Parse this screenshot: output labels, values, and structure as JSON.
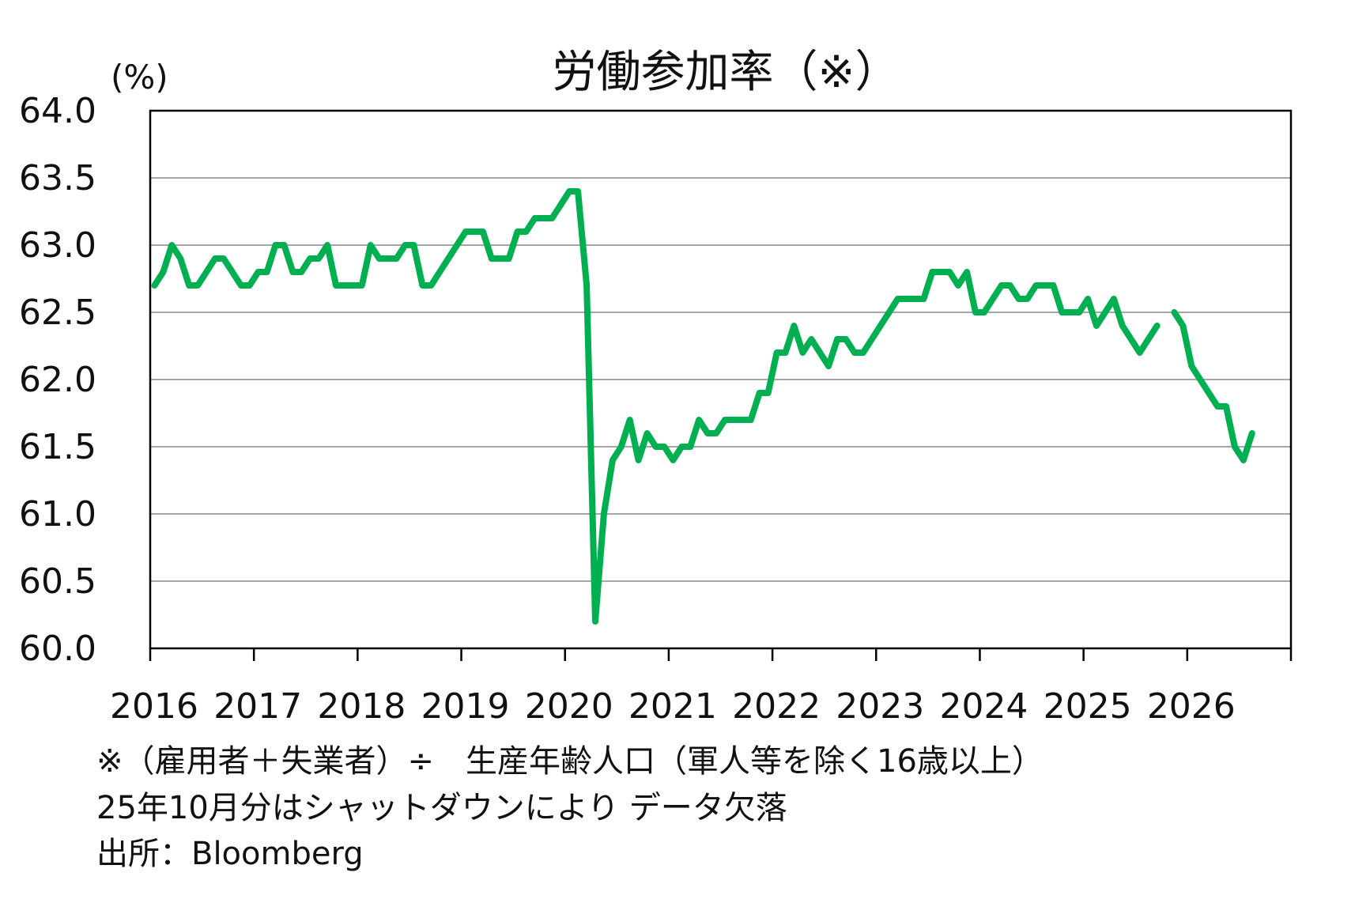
{
  "chart_data": {
    "type": "line",
    "title": "労働参加率（※）",
    "ylabel": "(%)",
    "xlabel": "",
    "ylim": [
      60.0,
      64.0
    ],
    "yticks": [
      "64.0",
      "63.5",
      "63.0",
      "62.5",
      "62.0",
      "61.5",
      "61.0",
      "60.5",
      "60.0"
    ],
    "xticks": [
      "2016",
      "2017",
      "2018",
      "2019",
      "2020",
      "2021",
      "2022",
      "2023",
      "2024",
      "2025",
      "2026"
    ],
    "x_start": "2016-01",
    "x_end": "2027-01",
    "grid": true,
    "line_color": "#00b050",
    "series": [
      {
        "values": [
          62.7,
          62.8,
          63.0,
          62.9,
          62.7,
          62.7,
          62.8,
          62.9,
          62.9,
          62.8,
          62.7,
          62.7,
          62.8,
          62.8,
          63.0,
          63.0,
          62.8,
          62.8,
          62.9,
          62.9,
          63.0,
          62.7,
          62.7,
          62.7,
          62.7,
          63.0,
          62.9,
          62.9,
          62.9,
          63.0,
          63.0,
          62.7,
          62.7,
          62.8,
          62.9,
          63.0,
          63.1,
          63.1,
          63.1,
          62.9,
          62.9,
          62.9,
          63.1,
          63.1,
          63.2,
          63.2,
          63.2,
          63.3,
          63.4,
          63.4,
          62.7,
          60.2,
          61.0,
          61.4,
          61.5,
          61.7,
          61.4,
          61.6,
          61.5,
          61.5,
          61.4,
          61.5,
          61.5,
          61.7,
          61.6,
          61.6,
          61.7,
          61.7,
          61.7,
          61.7,
          61.9,
          61.9,
          62.2,
          62.2,
          62.4,
          62.2,
          62.3,
          62.2,
          62.1,
          62.3,
          62.3,
          62.2,
          62.2,
          62.3,
          62.4,
          62.5,
          62.6,
          62.6,
          62.6,
          62.6,
          62.8,
          62.8,
          62.8,
          62.7,
          62.8,
          62.5,
          62.5,
          62.6,
          62.7,
          62.7,
          62.6,
          62.6,
          62.7,
          62.7,
          62.7,
          62.5,
          62.5,
          62.5,
          62.6,
          62.4,
          62.5,
          62.6,
          62.4,
          62.3,
          62.2,
          62.3,
          62.4,
          null,
          62.5,
          62.4,
          62.1,
          62.0,
          61.9,
          61.8,
          61.8,
          61.5,
          61.4,
          61.6
        ]
      }
    ]
  },
  "notes": {
    "line1": "※（雇用者＋失業者）÷　生産年齢人口（軍人等を除く16歳以上）",
    "line2": "25年10月分はシャットダウンにより データ欠落",
    "line3": "出所：Bloomberg"
  }
}
